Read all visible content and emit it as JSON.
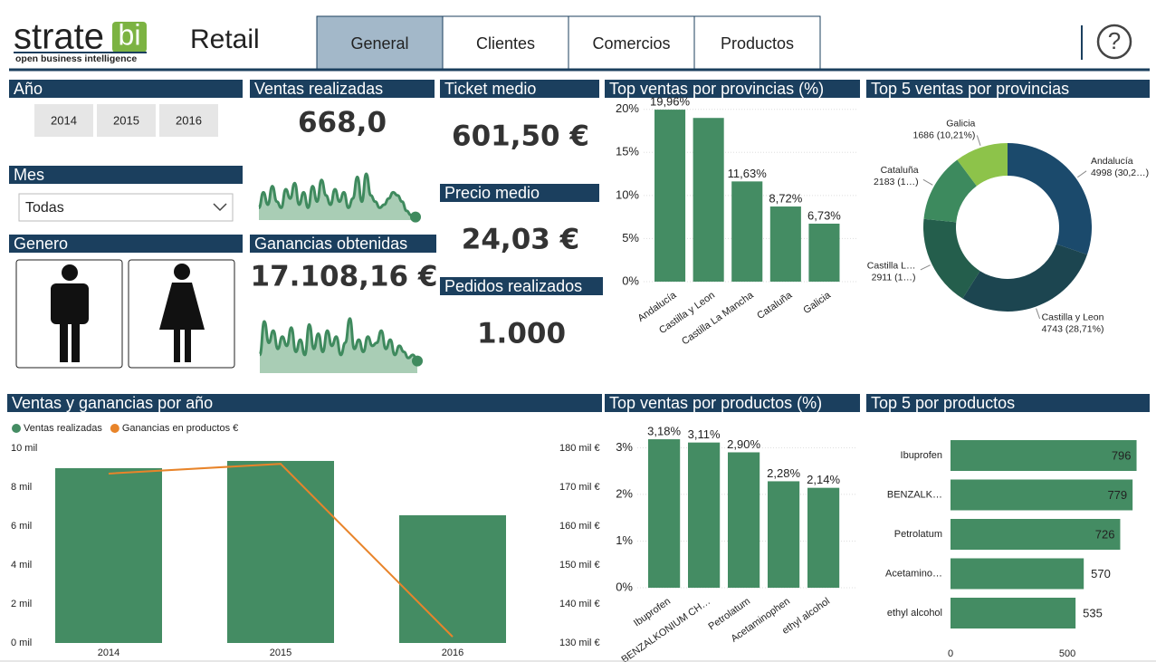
{
  "header": {
    "logo_text": "strate",
    "logo_badge": "bi",
    "logo_tagline": "open business intelligence",
    "title": "Retail",
    "tabs": [
      "General",
      "Clientes",
      "Comercios",
      "Productos"
    ],
    "active_tab": 0,
    "help": "?"
  },
  "filters": {
    "year": {
      "title": "Año",
      "options": [
        "2014",
        "2015",
        "2016"
      ]
    },
    "month": {
      "title": "Mes",
      "selected": "Todas"
    },
    "gender": {
      "title": "Genero"
    }
  },
  "kpis": [
    {
      "title": "Ventas realizadas",
      "value": "668,0"
    },
    {
      "title": "Ganancias obtenidas",
      "value": "17.108,16 €"
    },
    {
      "title": "Ticket medio",
      "value": "601,50 €"
    },
    {
      "title": "Precio medio",
      "value": "24,03 €"
    },
    {
      "title": "Pedidos realizados",
      "value": "1.000"
    }
  ],
  "chart_data": [
    {
      "type": "area",
      "color": "#3f8a5e",
      "ylim": [
        0,
        100
      ],
      "values": [
        20,
        45,
        25,
        55,
        30,
        20,
        50,
        35,
        60,
        25,
        45,
        20,
        55,
        30,
        65,
        40,
        25,
        50,
        30,
        45,
        20,
        35,
        70,
        30,
        75,
        40,
        30,
        20,
        25,
        35,
        45,
        40,
        30,
        15,
        8,
        5
      ]
    },
    {
      "type": "area",
      "color": "#3f8a5e",
      "ylim": [
        0,
        100
      ],
      "values": [
        30,
        85,
        50,
        70,
        40,
        60,
        45,
        75,
        35,
        55,
        30,
        80,
        40,
        65,
        35,
        70,
        45,
        60,
        30,
        50,
        90,
        40,
        55,
        35,
        60,
        45,
        50,
        70,
        40,
        55,
        30,
        45,
        35,
        25,
        30,
        20
      ]
    },
    {
      "type": "bar",
      "title": "Top ventas por provincias (%)",
      "color": "#448c63",
      "grid": true,
      "categories": [
        "Andalucía",
        "Castilla y Leon",
        "Castilla La Mancha",
        "Cataluña",
        "Galicia"
      ],
      "values": [
        19.96,
        19.0,
        11.63,
        8.72,
        6.73
      ],
      "value_labels": [
        "19,96%",
        null,
        "11,63%",
        "8,72%",
        "6,73%"
      ],
      "ylim": [
        0,
        20.6
      ],
      "yticks": [
        {
          "value": 0,
          "label": "0%"
        },
        {
          "value": 5,
          "label": "5%"
        },
        {
          "value": 10,
          "label": "10%"
        },
        {
          "value": 15,
          "label": "15%"
        },
        {
          "value": 20,
          "label": "20%"
        }
      ]
    },
    {
      "type": "donut",
      "title": "Top 5 ventas por provincias",
      "categories": [
        "Andalucía",
        "Castilla y Leon",
        "Castilla L…",
        "Cataluña",
        "Galicia"
      ],
      "values": [
        4998,
        4743,
        2911,
        2183,
        1686
      ],
      "value_labels": [
        "4998 (30,2…)",
        "4743 (28,71%)",
        "2911 (1…)",
        "2183 (1…)",
        "1686 (10,21%)"
      ],
      "colors": [
        "#1b4a6c",
        "#1c4550",
        "#245e4c",
        "#3d8a5e",
        "#8dc34a"
      ]
    },
    {
      "type": "combo",
      "title": "Ventas y ganancias por año",
      "categories": [
        "2014",
        "2015",
        "2016"
      ],
      "series": [
        {
          "name": "Ventas realizadas",
          "type": "bar",
          "color": "#448c63",
          "values": [
            8980,
            9350,
            6560
          ]
        },
        {
          "name": "Ganancias en productos €",
          "type": "line",
          "axis": "y2",
          "color": "#e8842a",
          "values": [
            173500,
            176000,
            131600
          ]
        }
      ],
      "ylim": [
        0,
        10000
      ],
      "yticks": [
        {
          "value": 0,
          "label": "0 mil"
        },
        {
          "value": 2000,
          "label": "2 mil"
        },
        {
          "value": 4000,
          "label": "4 mil"
        },
        {
          "value": 6000,
          "label": "6 mil"
        },
        {
          "value": 8000,
          "label": "8 mil"
        },
        {
          "value": 10000,
          "label": "10 mil"
        }
      ],
      "y2lim": [
        130000,
        180000
      ],
      "y2ticks": [
        {
          "value": 130000,
          "label": "130 mil €"
        },
        {
          "value": 140000,
          "label": "140 mil €"
        },
        {
          "value": 150000,
          "label": "150 mil €"
        },
        {
          "value": 160000,
          "label": "160 mil €"
        },
        {
          "value": 170000,
          "label": "170 mil €"
        },
        {
          "value": 180000,
          "label": "180 mil €"
        }
      ]
    },
    {
      "type": "bar",
      "title": "Top ventas por productos (%)",
      "color": "#448c63",
      "grid": true,
      "categories": [
        "Ibuprofen",
        "BENZALKONIUM CH…",
        "Petrolatum",
        "Acetaminophen",
        "ethyl alcohol"
      ],
      "values": [
        3.18,
        3.11,
        2.9,
        2.28,
        2.14
      ],
      "value_labels": [
        "3,18%",
        "3,11%",
        "2,90%",
        "2,28%",
        "2,14%"
      ],
      "ylim": [
        0,
        3.2
      ],
      "yticks": [
        {
          "value": 0,
          "label": "0%"
        },
        {
          "value": 1,
          "label": "1%"
        },
        {
          "value": 2,
          "label": "2%"
        },
        {
          "value": 3,
          "label": "3%"
        }
      ]
    },
    {
      "type": "hbar",
      "title": "Top 5 por productos",
      "color": "#448c63",
      "categories": [
        "Ibuprofen",
        "BENZALK…",
        "Petrolatum",
        "Acetamino…",
        "ethyl alcohol"
      ],
      "values": [
        796,
        779,
        726,
        570,
        535
      ],
      "xlim": [
        0,
        852
      ],
      "xticks": [
        0,
        500
      ]
    }
  ]
}
